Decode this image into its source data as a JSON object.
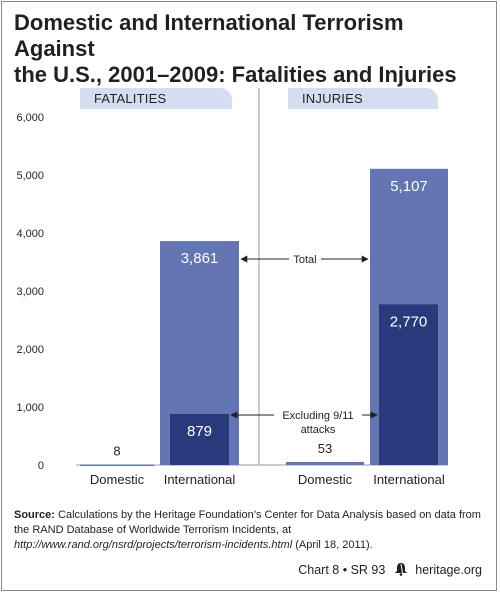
{
  "title_line1": "Domestic and International Terrorism Against",
  "title_line2": "the U.S., 2001–2009: Fatalities and Injuries",
  "chart_data": {
    "type": "bar",
    "panels": [
      {
        "name": "FATALITIES",
        "categories": [
          "Domestic",
          "International"
        ],
        "total": [
          8,
          3861
        ],
        "excluding_911": [
          null,
          879
        ]
      },
      {
        "name": "INJURIES",
        "categories": [
          "Domestic",
          "International"
        ],
        "total": [
          53,
          5107
        ],
        "excluding_911": [
          null,
          2770
        ]
      }
    ],
    "value_labels": {
      "fat_dom": "8",
      "fat_int_total": "3,861",
      "fat_int_excl": "879",
      "inj_dom": "53",
      "inj_int_total": "5,107",
      "inj_int_excl": "2,770"
    },
    "y_ticks": [
      0,
      1000,
      2000,
      3000,
      4000,
      5000,
      6000
    ],
    "y_tick_labels": [
      "0",
      "1,000",
      "2,000",
      "3,000",
      "4,000",
      "5,000",
      "6,000"
    ],
    "ylim": [
      0,
      6000
    ],
    "annotations": {
      "total": "Total",
      "excluding_line1": "Excluding 9/11",
      "excluding_line2": "attacks"
    },
    "grid": false
  },
  "source": {
    "label": "Source:",
    "text1": " Calculations by the Heritage Foundation’s Center for Data Analysis based on data from the RAND Database of Worldwide Terrorism Incidents, at ",
    "url": "http://www.rand.org/nsrd/projects/terrorism-incidents.html",
    "text2": " (April 18, 2011)."
  },
  "credit": {
    "chart": "Chart 8 • SR 93",
    "site": "heritage.org"
  },
  "colors": {
    "total_bar": "#6375b3",
    "excl_bar": "#283a7c",
    "tab": "#d3dff0",
    "text": "#231f20"
  }
}
